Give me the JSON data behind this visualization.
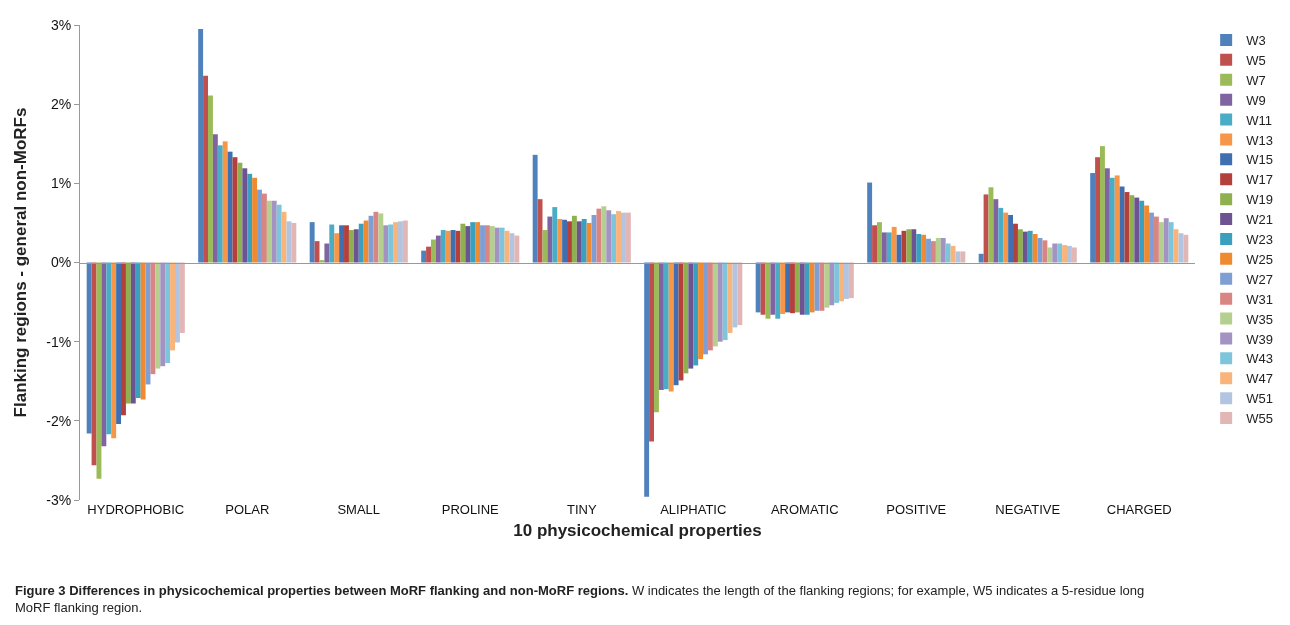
{
  "chart_data": {
    "type": "bar",
    "xlabel": "10 physicochemical properties",
    "ylabel": "Flanking regions - general non-MoRFs",
    "categories": [
      "HYDROPHOBIC",
      "POLAR",
      "SMALL",
      "PROLINE",
      "TINY",
      "ALIPHATIC",
      "AROMATIC",
      "POSITIVE",
      "NEGATIVE",
      "CHARGED"
    ],
    "series": [
      {
        "name": "W3",
        "color": "#4f81bd",
        "values": [
          -2.16,
          2.95,
          0.51,
          0.15,
          1.36,
          -2.96,
          -0.63,
          1.01,
          0.11,
          1.13
        ]
      },
      {
        "name": "W5",
        "color": "#c0504d",
        "values": [
          -2.56,
          2.36,
          0.27,
          0.2,
          0.8,
          -2.26,
          -0.66,
          0.47,
          0.86,
          1.33
        ]
      },
      {
        "name": "W7",
        "color": "#9bbb59",
        "values": [
          -2.73,
          2.11,
          0.03,
          0.29,
          0.41,
          -1.89,
          -0.71,
          0.51,
          0.95,
          1.47
        ]
      },
      {
        "name": "W9",
        "color": "#8064a2",
        "values": [
          -2.32,
          1.62,
          0.24,
          0.34,
          0.58,
          -1.61,
          -0.66,
          0.38,
          0.8,
          1.19
        ]
      },
      {
        "name": "W11",
        "color": "#4bacc6",
        "values": [
          -2.17,
          1.48,
          0.48,
          0.41,
          0.7,
          -1.6,
          -0.71,
          0.38,
          0.69,
          1.07
        ]
      },
      {
        "name": "W13",
        "color": "#f79646",
        "values": [
          -2.22,
          1.53,
          0.37,
          0.4,
          0.55,
          -1.63,
          -0.65,
          0.45,
          0.63,
          1.1
        ]
      },
      {
        "name": "W15",
        "color": "#3f6fb0",
        "values": [
          -2.04,
          1.4,
          0.47,
          0.41,
          0.54,
          -1.55,
          -0.63,
          0.35,
          0.6,
          0.96
        ]
      },
      {
        "name": "W17",
        "color": "#b4403c",
        "values": [
          -1.93,
          1.33,
          0.47,
          0.4,
          0.52,
          -1.49,
          -0.64,
          0.4,
          0.49,
          0.89
        ]
      },
      {
        "name": "W19",
        "color": "#8fb04f",
        "values": [
          -1.78,
          1.26,
          0.41,
          0.49,
          0.59,
          -1.4,
          -0.63,
          0.42,
          0.42,
          0.85
        ]
      },
      {
        "name": "W21",
        "color": "#6e5393",
        "values": [
          -1.78,
          1.19,
          0.42,
          0.46,
          0.52,
          -1.34,
          -0.66,
          0.42,
          0.39,
          0.82
        ]
      },
      {
        "name": "W23",
        "color": "#3aa0bd",
        "values": [
          -1.71,
          1.12,
          0.49,
          0.51,
          0.55,
          -1.3,
          -0.66,
          0.36,
          0.4,
          0.78
        ]
      },
      {
        "name": "W25",
        "color": "#f08a30",
        "values": [
          -1.73,
          1.07,
          0.53,
          0.51,
          0.5,
          -1.22,
          -0.63,
          0.35,
          0.36,
          0.72
        ]
      },
      {
        "name": "W27",
        "color": "#7f9fd4",
        "values": [
          -1.54,
          0.92,
          0.59,
          0.47,
          0.6,
          -1.16,
          -0.61,
          0.3,
          0.31,
          0.63
        ]
      },
      {
        "name": "W31",
        "color": "#d98583",
        "values": [
          -1.41,
          0.87,
          0.64,
          0.47,
          0.68,
          -1.11,
          -0.61,
          0.27,
          0.28,
          0.58
        ]
      },
      {
        "name": "W35",
        "color": "#b5cf8e",
        "values": [
          -1.34,
          0.78,
          0.62,
          0.46,
          0.71,
          -1.06,
          -0.57,
          0.31,
          0.19,
          0.51
        ]
      },
      {
        "name": "W39",
        "color": "#a393c3",
        "values": [
          -1.31,
          0.78,
          0.47,
          0.44,
          0.66,
          -1.0,
          -0.54,
          0.31,
          0.24,
          0.56
        ]
      },
      {
        "name": "W43",
        "color": "#7ec5dc",
        "values": [
          -1.27,
          0.73,
          0.48,
          0.44,
          0.61,
          -0.98,
          -0.51,
          0.24,
          0.24,
          0.51
        ]
      },
      {
        "name": "W47",
        "color": "#f9b47c",
        "values": [
          -1.11,
          0.64,
          0.51,
          0.4,
          0.65,
          -0.89,
          -0.49,
          0.21,
          0.22,
          0.42
        ]
      },
      {
        "name": "W51",
        "color": "#b3c4e0",
        "values": [
          -1.01,
          0.52,
          0.52,
          0.37,
          0.63,
          -0.82,
          -0.46,
          0.14,
          0.21,
          0.37
        ]
      },
      {
        "name": "W55",
        "color": "#e2b6b5",
        "values": [
          -0.89,
          0.5,
          0.53,
          0.34,
          0.63,
          -0.79,
          -0.45,
          0.14,
          0.19,
          0.35
        ]
      }
    ],
    "ylim": [
      -3,
      3
    ],
    "yticks": [
      {
        "value": -3,
        "label": "-3%"
      },
      {
        "value": -2,
        "label": "-2%"
      },
      {
        "value": -1,
        "label": "-1%"
      },
      {
        "value": 0,
        "label": "0%"
      },
      {
        "value": 1,
        "label": "1%"
      },
      {
        "value": 2,
        "label": "2%"
      },
      {
        "value": 3,
        "label": "3%"
      }
    ],
    "legend": "right",
    "annotations": [
      "Figure 3 Differences in physicochemical properties between MoRF flanking and non-MoRF regions.",
      "W indicates the length of the flanking regions; for example, W5 indicates a 5-residue long MoRF flanking region."
    ]
  }
}
